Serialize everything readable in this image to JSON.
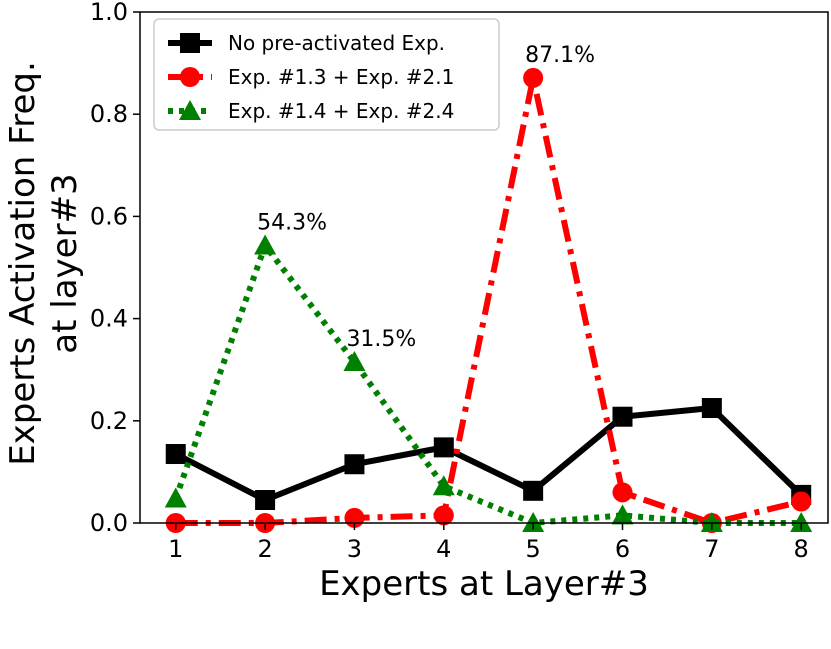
{
  "chart_data": {
    "type": "line",
    "title": "",
    "xlabel": "Experts at Layer#3",
    "ylabel_lines": [
      "Experts Activation Freq.",
      "at layer#3"
    ],
    "x": [
      1,
      2,
      3,
      4,
      5,
      6,
      7,
      8
    ],
    "xlim": [
      0.6,
      8.3
    ],
    "ylim": [
      0.0,
      1.0
    ],
    "xticks": [
      "1",
      "2",
      "3",
      "4",
      "5",
      "6",
      "7",
      "8"
    ],
    "yticks": [
      "0.0",
      "0.2",
      "0.4",
      "0.6",
      "0.8",
      "1.0"
    ],
    "grid": false,
    "legend_position": "upper-left",
    "series": [
      {
        "name": "No pre-activated Exp.",
        "color": "#000000",
        "marker": "square",
        "linestyle": "solid",
        "values": [
          0.135,
          0.045,
          0.115,
          0.148,
          0.063,
          0.208,
          0.225,
          0.055
        ]
      },
      {
        "name": "Exp. #1.3 + Exp. #2.1",
        "color": "#ff0000",
        "marker": "circle",
        "linestyle": "dashdot",
        "values": [
          0.0,
          0.0,
          0.01,
          0.015,
          0.871,
          0.06,
          0.0,
          0.042
        ]
      },
      {
        "name": "Exp. #1.4 + Exp. #2.4",
        "color": "#008000",
        "marker": "triangle",
        "linestyle": "dotted",
        "values": [
          0.048,
          0.543,
          0.315,
          0.072,
          0.0,
          0.015,
          0.0,
          0.0
        ]
      }
    ],
    "annotations": [
      {
        "text": "87.1%",
        "x": 5,
        "y": 0.871
      },
      {
        "text": "54.3%",
        "x": 2,
        "y": 0.543
      },
      {
        "text": "31.5%",
        "x": 3,
        "y": 0.315
      }
    ]
  }
}
